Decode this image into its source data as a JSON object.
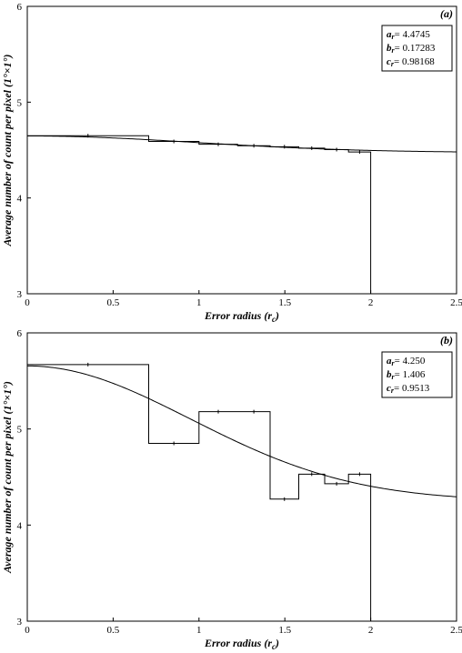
{
  "chart_data": [
    {
      "panel_tag": "(a)",
      "type": "line",
      "xlabel": "Error radius",
      "xlabel_symbol": "r",
      "xlabel_symbol_sub": "c",
      "ylabel": "Average number of count per pixel (1°×1°)",
      "xlim": [
        0,
        2.5
      ],
      "ylim": [
        3,
        6
      ],
      "x_ticks": [
        "0",
        "0.5",
        "1",
        "1.5",
        "2",
        "2.5"
      ],
      "y_ticks": [
        "3",
        "4",
        "5",
        "6"
      ],
      "legend": [
        {
          "key": "a",
          "sub": "r",
          "value": "= 4.4745"
        },
        {
          "key": "b",
          "sub": "r",
          "value": "= 0.17283"
        },
        {
          "key": "c",
          "sub": "r",
          "value": "= 0.98168"
        }
      ],
      "fit": {
        "a": 4.4745,
        "b": 0.17283,
        "c": 0.98168
      },
      "histogram": {
        "edges": [
          0,
          0.7071,
          1.0,
          1.2247,
          1.4142,
          1.5811,
          1.7321,
          1.8708,
          2.0
        ],
        "values": [
          4.65,
          4.59,
          4.56,
          4.545,
          4.535,
          4.52,
          4.505,
          4.48
        ],
        "drop_to": 3
      }
    },
    {
      "panel_tag": "(b)",
      "type": "line",
      "xlabel": "Error radius",
      "xlabel_symbol": "r",
      "xlabel_symbol_sub": "c",
      "ylabel": "Average number of count per pixel (1°×1°)",
      "xlim": [
        0,
        2.5
      ],
      "ylim": [
        3,
        6
      ],
      "x_ticks": [
        "0",
        "0.5",
        "1",
        "1.5",
        "2",
        "2.5"
      ],
      "y_ticks": [
        "3",
        "4",
        "5",
        "6"
      ],
      "legend": [
        {
          "key": "a",
          "sub": "r",
          "value": "= 4.250"
        },
        {
          "key": "b",
          "sub": "r",
          "value": "= 1.406"
        },
        {
          "key": "c",
          "sub": "r",
          "value": "= 0.9513"
        }
      ],
      "fit": {
        "a": 4.25,
        "b": 1.406,
        "c": 0.9513
      },
      "histogram": {
        "edges": [
          0,
          0.7071,
          1.0,
          1.2247,
          1.4142,
          1.5811,
          1.7321,
          1.8708,
          2.0
        ],
        "values": [
          5.67,
          4.85,
          5.18,
          5.18,
          4.27,
          4.53,
          4.43,
          4.53
        ],
        "drop_to": 3
      }
    }
  ]
}
